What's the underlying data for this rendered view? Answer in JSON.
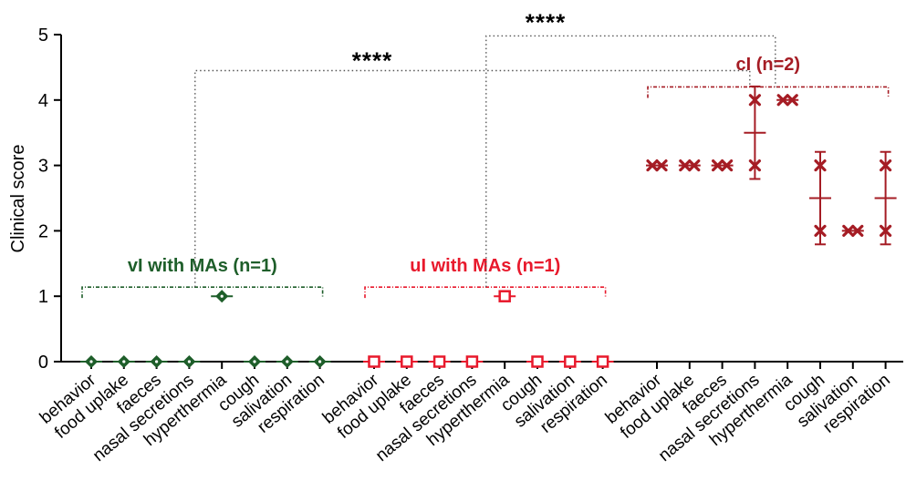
{
  "chart_data": {
    "type": "scatter",
    "ylabel": "Clinical score",
    "ylim": [
      0,
      5
    ],
    "yticks": [
      0,
      1,
      2,
      3,
      4,
      5
    ],
    "categories": [
      "behavior",
      "food uplake",
      "faeces",
      "nasal secretions",
      "hyperthermia",
      "cough",
      "salivation",
      "respiration"
    ],
    "groups": [
      {
        "name": "vI with MAs (n=1)",
        "color": "#1e5e2a",
        "marker": "diamond",
        "points": [
          [
            0
          ],
          [
            0
          ],
          [
            0
          ],
          [
            0
          ],
          [
            1
          ],
          [
            0
          ],
          [
            0
          ],
          [
            0
          ]
        ]
      },
      {
        "name": "uI with MAs (n=1)",
        "color": "#e8192c",
        "marker": "square",
        "points": [
          [
            0
          ],
          [
            0
          ],
          [
            0
          ],
          [
            0
          ],
          [
            1
          ],
          [
            0
          ],
          [
            0
          ],
          [
            0
          ]
        ]
      },
      {
        "name": "cI (n=2)",
        "color": "#a51c24",
        "marker": "x",
        "points": [
          [
            3,
            3
          ],
          [
            3,
            3
          ],
          [
            3,
            3
          ],
          [
            3,
            4
          ],
          [
            4,
            4
          ],
          [
            2,
            3
          ],
          [
            2,
            2
          ],
          [
            2,
            3
          ]
        ]
      }
    ],
    "significance": [
      {
        "from_group": 0,
        "to_group": 2,
        "label": "****"
      },
      {
        "from_group": 1,
        "to_group": 2,
        "label": "****"
      }
    ]
  }
}
